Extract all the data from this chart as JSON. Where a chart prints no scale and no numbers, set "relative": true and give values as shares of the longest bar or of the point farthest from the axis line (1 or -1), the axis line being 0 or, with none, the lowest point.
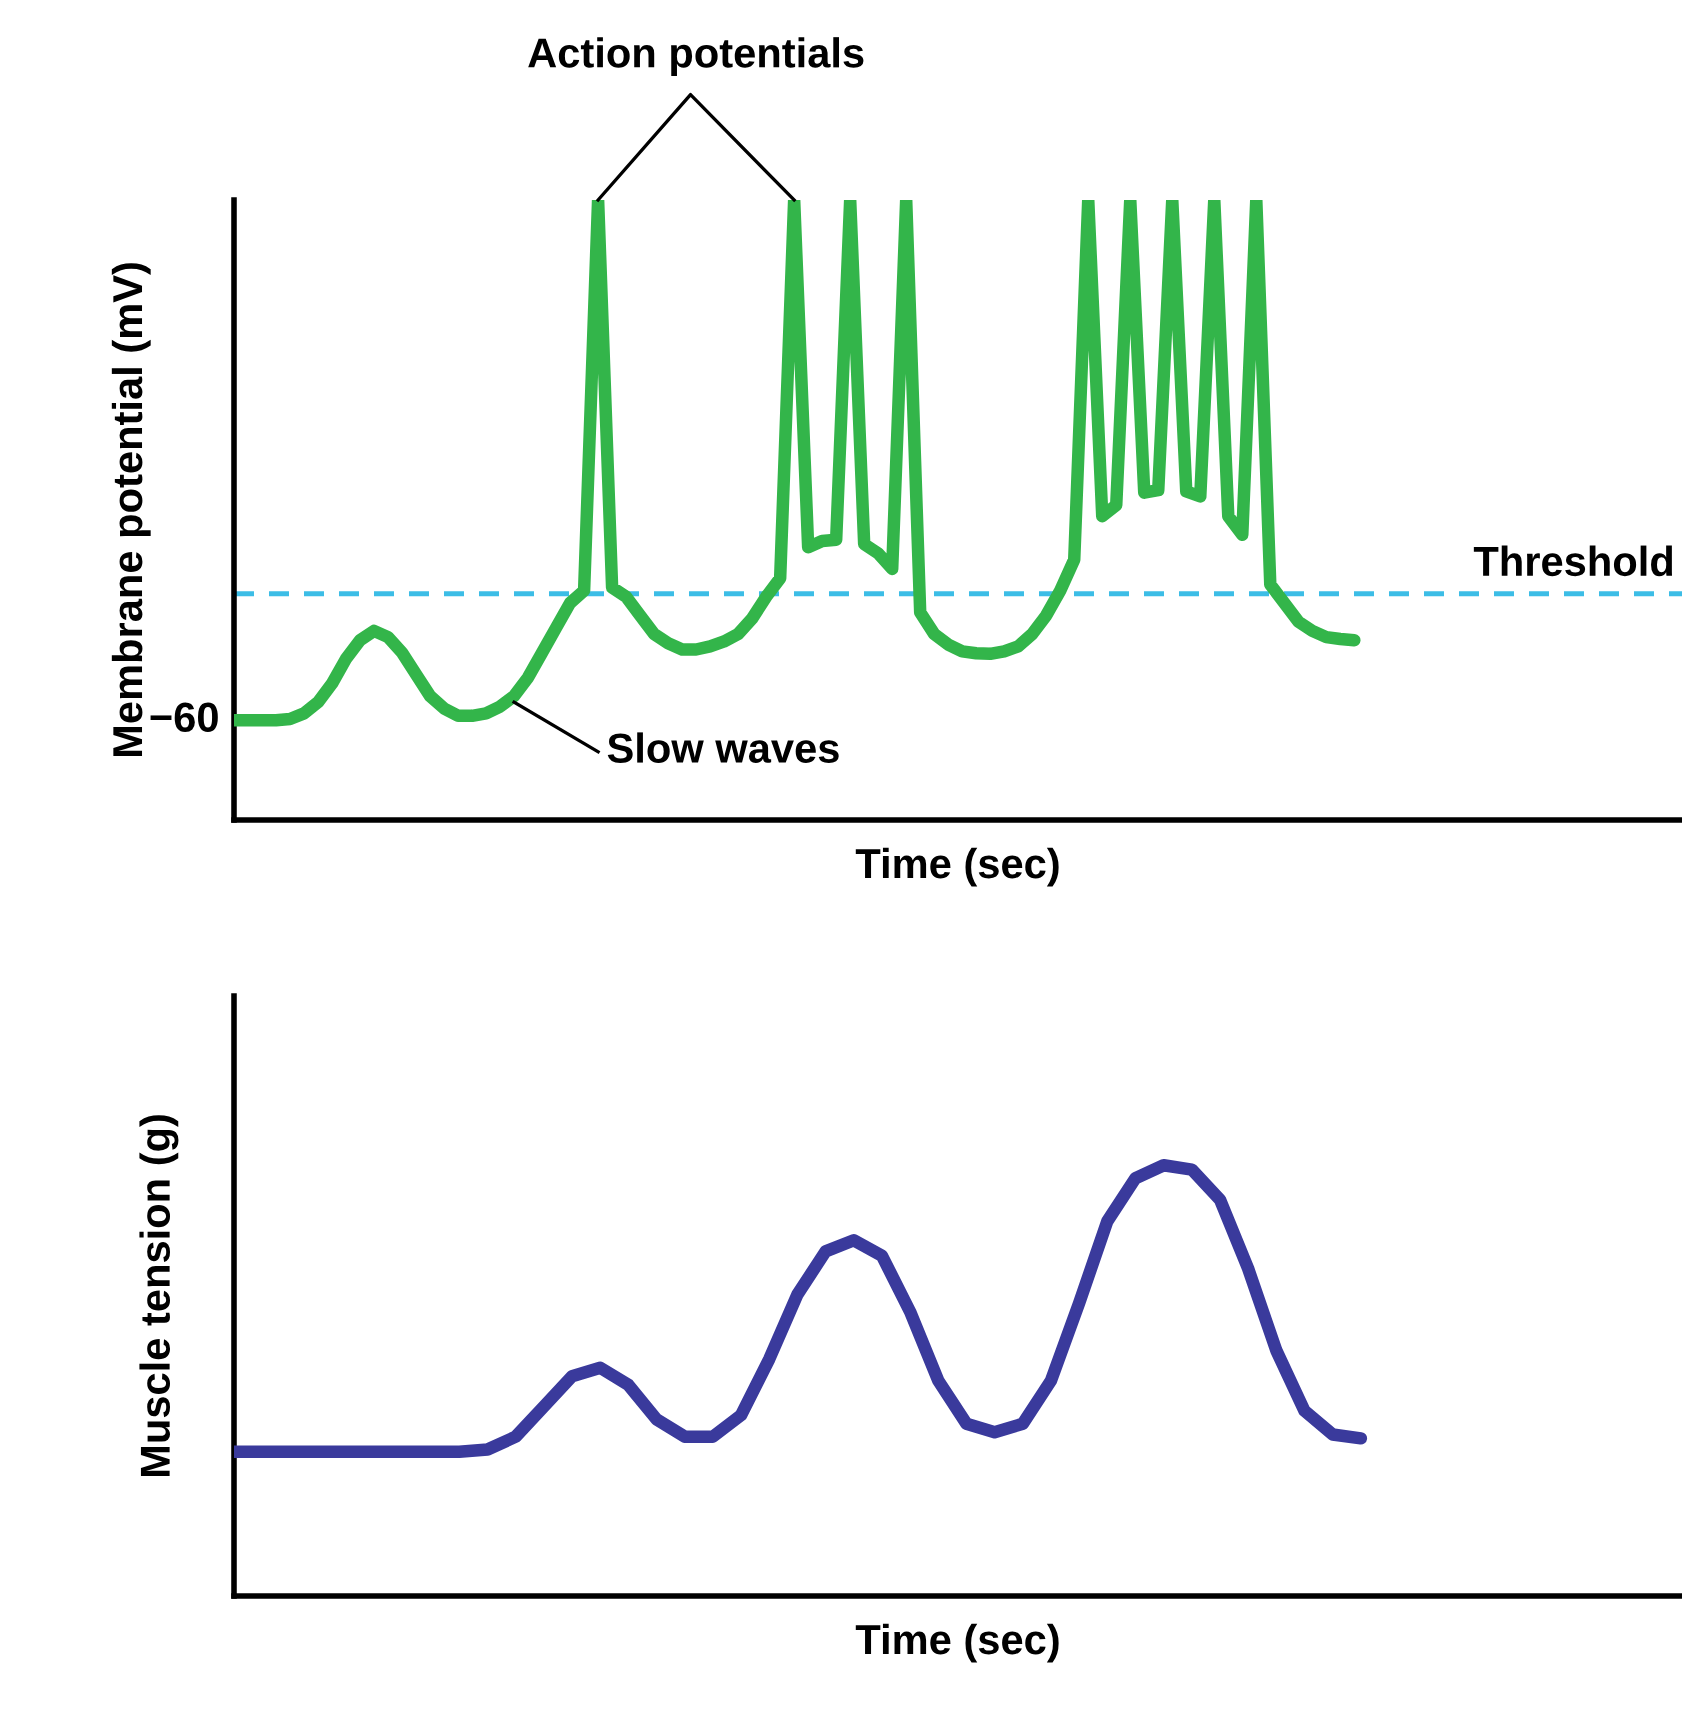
{
  "chart_data": [
    {
      "type": "line",
      "relative": true,
      "xlabel": "Time (sec)",
      "ylabel": "Membrane potential (mV)",
      "categories": [
        null,
        null,
        null,
        null,
        null,
        null,
        null,
        null,
        null,
        null,
        null,
        null,
        null,
        null,
        null,
        null,
        null,
        null,
        null,
        null,
        null,
        null,
        null,
        null,
        null,
        null,
        null,
        null,
        null,
        null,
        null,
        null,
        null,
        null,
        null,
        null,
        null,
        null,
        null,
        null,
        null,
        null,
        null,
        null,
        null,
        null,
        null,
        null,
        null,
        null,
        null,
        null,
        null,
        null,
        null,
        null,
        null,
        null,
        null,
        null,
        null,
        null,
        null,
        null,
        null,
        null,
        null,
        null,
        null,
        null,
        null,
        null,
        null,
        null,
        null,
        null,
        null,
        null,
        null,
        null,
        null,
        null,
        null,
        null,
        null,
        null,
        null,
        null,
        null,
        null,
        null,
        null,
        null,
        null,
        null,
        null,
        null,
        null,
        null,
        null,
        null,
        null,
        null,
        null
      ],
      "series": [
        {
          "color": "#33b54a",
          "values": [
            0.161,
            0.161,
            0.161,
            0.161,
            0.163,
            0.172,
            0.19,
            0.22,
            0.26,
            0.29,
            0.305,
            0.295,
            0.27,
            0.235,
            0.2,
            0.18,
            0.168,
            0.168,
            0.172,
            0.183,
            0.2,
            0.23,
            0.27,
            0.31,
            0.35,
            0.37,
            1.0,
            0.375,
            0.36,
            0.33,
            0.3,
            0.285,
            0.275,
            0.275,
            0.28,
            0.288,
            0.3,
            0.325,
            0.36,
            0.39,
            1.0,
            0.44,
            0.45,
            0.452,
            1.0,
            0.445,
            0.43,
            0.405,
            1.0,
            0.335,
            0.3,
            0.283,
            0.272,
            0.269,
            0.268,
            0.272,
            0.28,
            0.3,
            0.33,
            0.37,
            0.42,
            1.0,
            0.49,
            0.508,
            1.0,
            0.528,
            0.532,
            1.0,
            0.53,
            0.522,
            1.0,
            0.49,
            0.46,
            1.0,
            0.38,
            0.35,
            0.32,
            0.305,
            0.295,
            0.292,
            0.29,
            null,
            null,
            null,
            null,
            null,
            null,
            null,
            null,
            null,
            null,
            null,
            null,
            null,
            null,
            null,
            null,
            null,
            null,
            null,
            null,
            null,
            null,
            null
          ]
        }
      ],
      "ref_lines": [
        {
          "axis": "y",
          "value": 0.365,
          "label": "Threshold",
          "color": "#3cbde6",
          "line_style": "dashed"
        }
      ],
      "annotations": [
        {
          "text": "Action potentials"
        },
        {
          "text": "Slow waves"
        },
        "−60"
      ]
    },
    {
      "type": "line",
      "relative": true,
      "xlabel": "Time (sec)",
      "ylabel": "Muscle tension (g)",
      "categories": [
        null,
        null,
        null,
        null,
        null,
        null,
        null,
        null,
        null,
        null,
        null,
        null,
        null,
        null,
        null,
        null,
        null,
        null,
        null,
        null,
        null,
        null,
        null,
        null,
        null,
        null,
        null,
        null,
        null,
        null,
        null,
        null,
        null,
        null,
        null,
        null,
        null,
        null,
        null,
        null,
        null,
        null,
        null,
        null,
        null,
        null,
        null,
        null,
        null,
        null,
        null,
        null
      ],
      "series": [
        {
          "color": "#3a3a9c",
          "values": [
            0.335,
            0.335,
            0.335,
            0.335,
            0.335,
            0.335,
            0.335,
            0.335,
            0.335,
            0.34,
            0.37,
            0.44,
            0.51,
            0.53,
            0.49,
            0.41,
            0.37,
            0.37,
            0.42,
            0.55,
            0.7,
            0.8,
            0.826,
            0.79,
            0.66,
            0.5,
            0.4,
            0.38,
            0.4,
            0.5,
            0.68,
            0.87,
            0.97,
            1,
            0.99,
            0.92,
            0.76,
            0.57,
            0.43,
            0.375,
            0.366,
            null,
            null,
            null,
            null,
            null,
            null,
            null,
            null,
            null,
            null,
            null
          ]
        }
      ]
    }
  ]
}
